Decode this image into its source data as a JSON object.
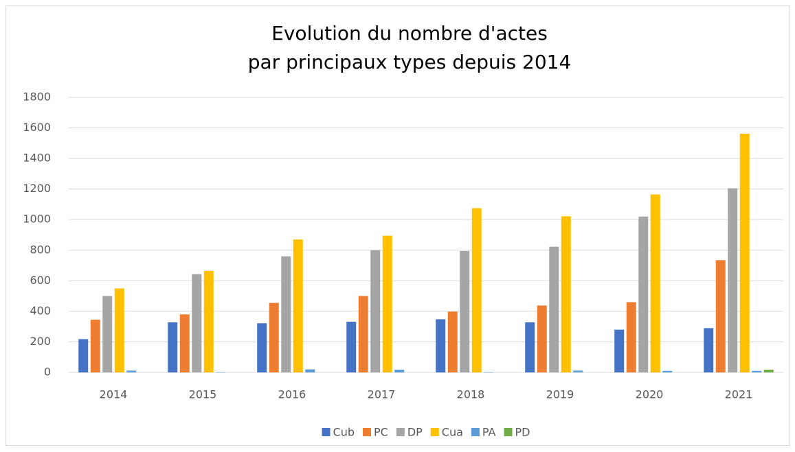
{
  "chart_data": {
    "type": "bar",
    "title": [
      "Evolution du nombre d'actes",
      "par principaux types depuis 2014"
    ],
    "categories": [
      "2014",
      "2015",
      "2016",
      "2017",
      "2018",
      "2019",
      "2020",
      "2021"
    ],
    "series": [
      {
        "name": "Cub",
        "color": "#4472c4",
        "values": [
          218,
          328,
          322,
          332,
          348,
          328,
          280,
          290
        ]
      },
      {
        "name": "PC",
        "color": "#ed7d31",
        "values": [
          345,
          380,
          455,
          500,
          398,
          438,
          460,
          735
        ]
      },
      {
        "name": "DP",
        "color": "#a5a5a5",
        "values": [
          500,
          643,
          760,
          800,
          795,
          823,
          1020,
          1205
        ]
      },
      {
        "name": "Cua",
        "color": "#ffc000",
        "values": [
          550,
          665,
          870,
          895,
          1075,
          1022,
          1165,
          1562
        ]
      },
      {
        "name": "PA",
        "color": "#5b9bd5",
        "values": [
          12,
          3,
          20,
          18,
          3,
          12,
          10,
          10
        ]
      },
      {
        "name": "PD",
        "color": "#70ad47",
        "values": [
          0,
          0,
          0,
          0,
          0,
          0,
          0,
          18
        ]
      }
    ],
    "ylim": [
      0,
      1800
    ],
    "yticks": [
      0,
      200,
      400,
      600,
      800,
      1000,
      1200,
      1400,
      1600,
      1800
    ],
    "grid": true,
    "legend": "bottom"
  }
}
